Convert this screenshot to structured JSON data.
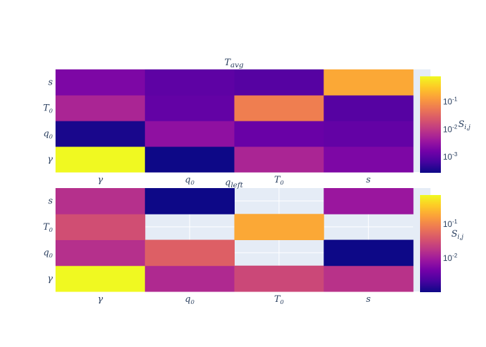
{
  "chart_data": [
    {
      "type": "heatmap",
      "title": {
        "base": "T",
        "sub": "avg"
      },
      "x": [
        {
          "base": "γ",
          "sub": ""
        },
        {
          "base": "q",
          "sub": "0"
        },
        {
          "base": "T",
          "sub": "0"
        },
        {
          "base": "s",
          "sub": ""
        }
      ],
      "y": [
        {
          "base": "γ",
          "sub": ""
        },
        {
          "base": "q",
          "sub": "0"
        },
        {
          "base": "T",
          "sub": "0"
        },
        {
          "base": "s",
          "sub": ""
        }
      ],
      "z": [
        [
          0.79,
          0.00025,
          0.0054,
          0.0019
        ],
        [
          0.0003,
          0.0028,
          0.00126,
          0.0011
        ],
        [
          0.0054,
          0.0011,
          0.06,
          0.00085
        ],
        [
          0.0019,
          0.001,
          0.00085,
          0.158
        ]
      ],
      "colorscale": "Plasma",
      "color_scale_type": "log",
      "colorbar": {
        "title": {
          "base": "S",
          "sub": "i,j"
        },
        "ticks": [
          {
            "base": "10",
            "exp": "-1",
            "value": 0.1
          },
          {
            "base": "10",
            "exp": "-2",
            "value": 0.01
          },
          {
            "base": "10",
            "exp": "-3",
            "value": 0.001
          }
        ]
      }
    },
    {
      "type": "heatmap",
      "title": {
        "base": "q",
        "sub": "left"
      },
      "x": [
        {
          "base": "γ",
          "sub": ""
        },
        {
          "base": "q",
          "sub": "0"
        },
        {
          "base": "T",
          "sub": "0"
        },
        {
          "base": "s",
          "sub": ""
        }
      ],
      "y": [
        {
          "base": "γ",
          "sub": ""
        },
        {
          "base": "q",
          "sub": "0"
        },
        {
          "base": "T",
          "sub": "0"
        },
        {
          "base": "s",
          "sub": ""
        }
      ],
      "z": [
        [
          0.69,
          0.013,
          0.026,
          0.016
        ],
        [
          0.015,
          0.044,
          null,
          0.00095
        ],
        [
          0.03,
          null,
          0.186,
          null
        ],
        [
          0.015,
          0.00095,
          null,
          0.0083
        ]
      ],
      "colorscale": "Plasma",
      "color_scale_type": "log",
      "colorbar": {
        "title": {
          "base": "S",
          "sub": "i,j"
        },
        "ticks": [
          {
            "base": "10",
            "exp": "-1",
            "value": 0.1
          },
          {
            "base": "10",
            "exp": "-2",
            "value": 0.01
          }
        ]
      }
    }
  ],
  "colors": {
    "plot_bg": "#e5ecf6",
    "text": "#2a3f5f",
    "plasma": [
      "#0d0887",
      "#46039f",
      "#7201a8",
      "#9c179e",
      "#bd3786",
      "#d8576b",
      "#ed7953",
      "#fb9f3a",
      "#fdca26",
      "#f0f921"
    ]
  }
}
